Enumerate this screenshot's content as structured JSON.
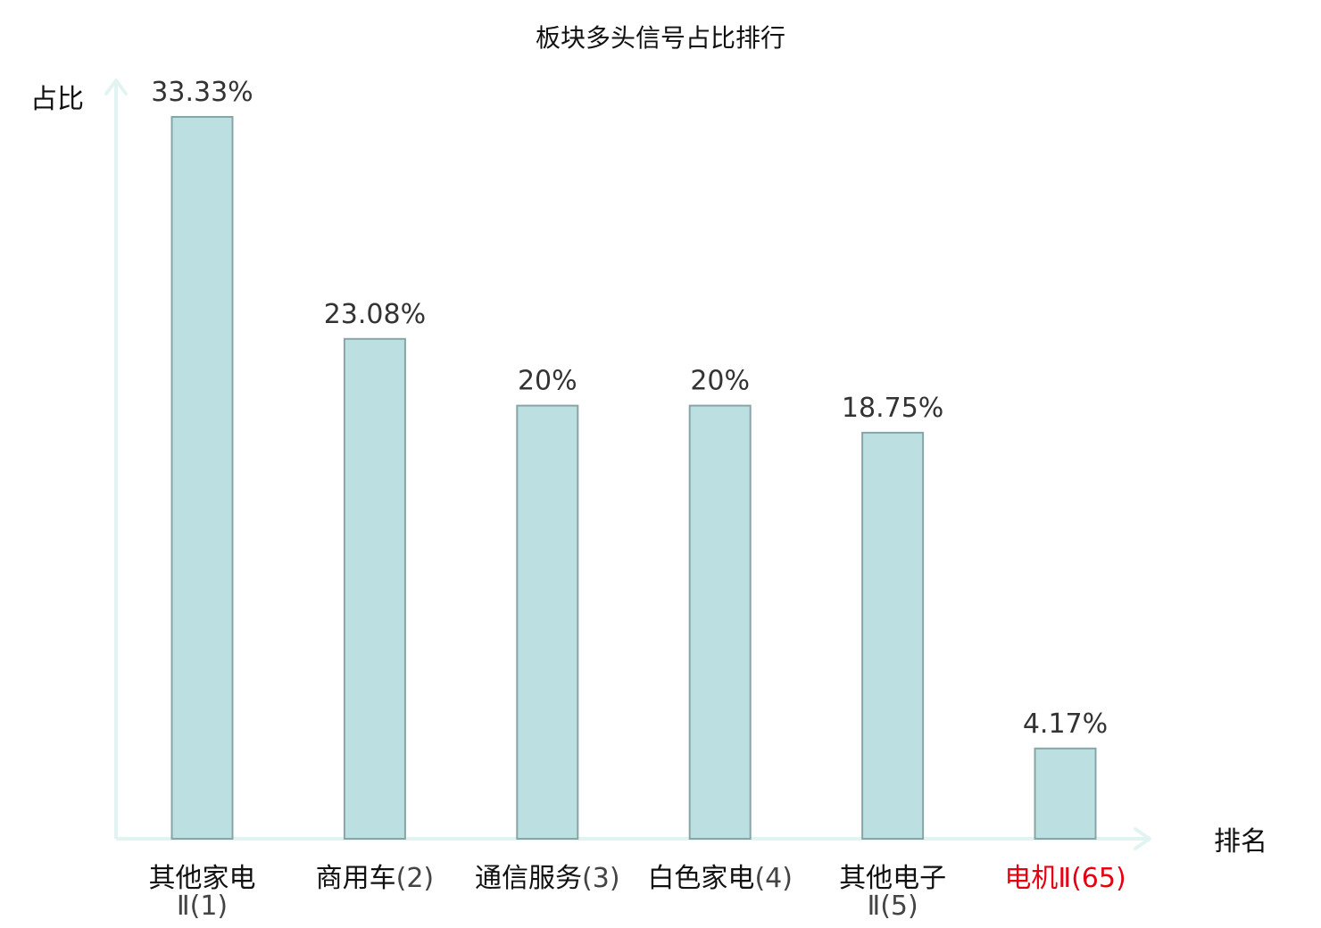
{
  "chart_data": {
    "type": "bar",
    "title": "板块多头信号占比排行",
    "ylabel": "占比",
    "xlabel": "排名",
    "categories": [
      {
        "name": "其他家电",
        "code": "Ⅱ(1)",
        "wrap": true,
        "highlight": false
      },
      {
        "name": "商用车",
        "code": "(2)",
        "wrap": false,
        "highlight": false
      },
      {
        "name": "通信服务",
        "code": "(3)",
        "wrap": false,
        "highlight": false
      },
      {
        "name": "白色家电",
        "code": "(4)",
        "wrap": false,
        "highlight": false
      },
      {
        "name": "其他电子",
        "code": "Ⅱ(5)",
        "wrap": true,
        "highlight": false
      },
      {
        "name": "电机",
        "code": "Ⅱ(65)",
        "wrap": false,
        "highlight": true
      }
    ],
    "values": [
      33.33,
      23.08,
      20,
      20,
      18.75,
      4.17
    ],
    "value_labels": [
      "33.33%",
      "23.08%",
      "20%",
      "20%",
      "18.75%",
      "4.17%"
    ],
    "ylim": [
      0,
      33.33
    ],
    "grid": false,
    "colors": {
      "bar_fill": "#bce0e2",
      "bar_stroke": "#87a5a7",
      "axis": "#e2f4f1",
      "highlight_text": "#e60012"
    }
  }
}
